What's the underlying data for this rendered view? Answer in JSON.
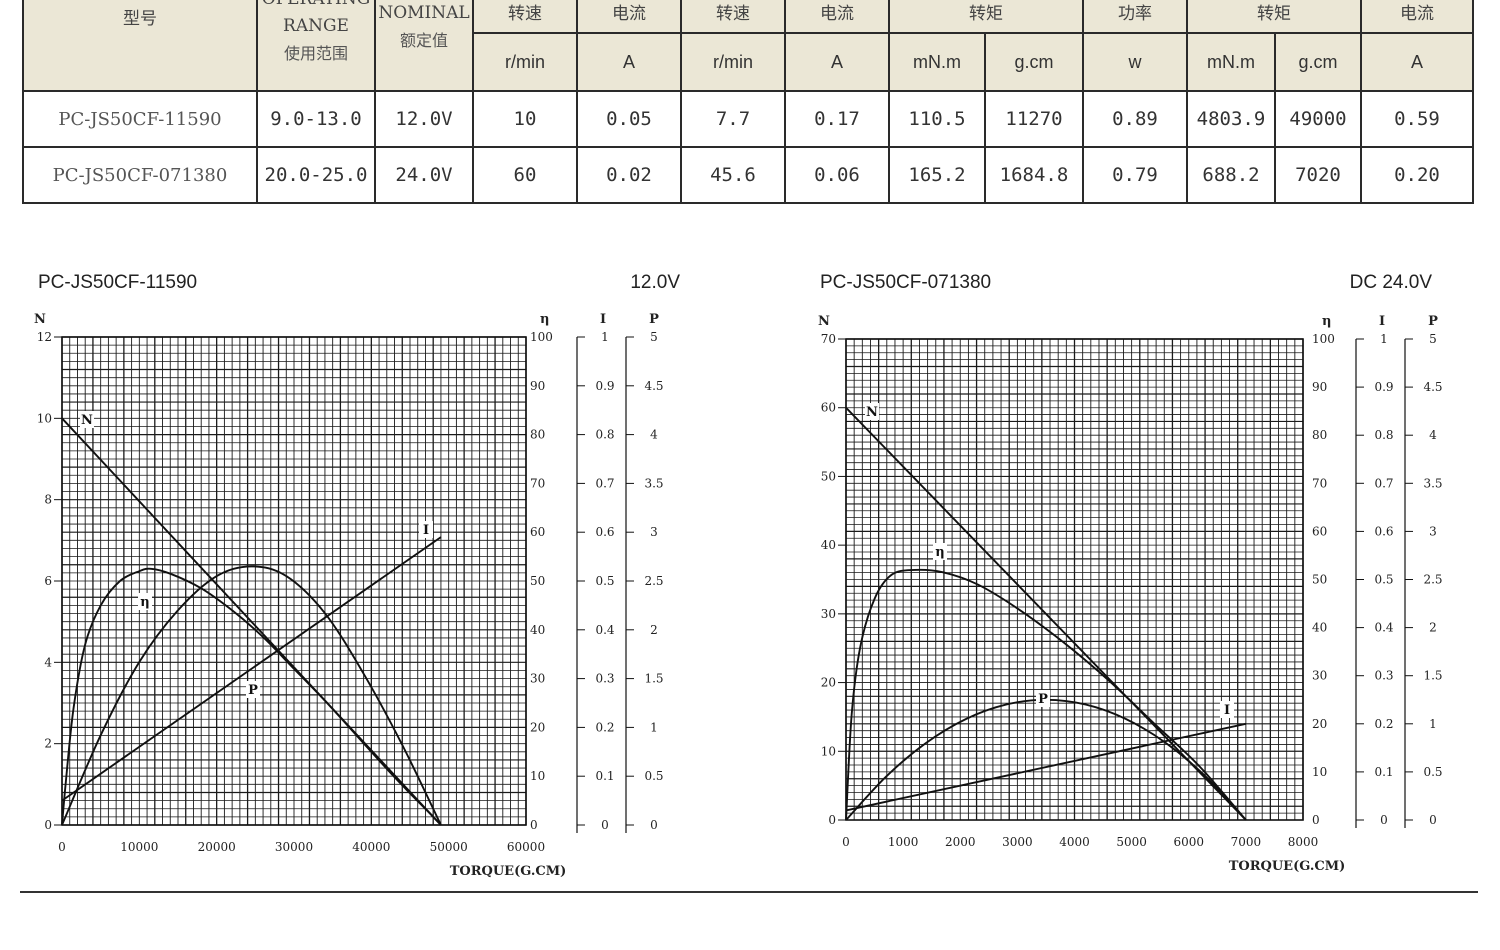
{
  "table": {
    "model_header": "型号",
    "op_range_en_1": "OPERATING",
    "op_range_en_2": "RANGE",
    "op_range_cn": "使用范围",
    "nominal_en": "NOMINAL",
    "nominal_cn": "额定值",
    "group_headers": [
      "转速",
      "电流",
      "转速",
      "电流",
      "转矩",
      "功率",
      "转矩",
      "电流"
    ],
    "units": [
      "r/min",
      "A",
      "r/min",
      "A",
      "mN.m",
      "g.cm",
      "w",
      "mN.m",
      "g.cm",
      "A"
    ],
    "rows": [
      [
        "PC-JS50CF-11590",
        "9.0-13.0",
        "12.0V",
        "10",
        "0.05",
        "7.7",
        "0.17",
        "110.5",
        "11270",
        "0.89",
        "4803.9",
        "49000",
        "0.59"
      ],
      [
        "PC-JS50CF-071380",
        "20.0-25.0",
        "24.0V",
        "60",
        "0.02",
        "45.6",
        "0.06",
        "165.2",
        "1684.8",
        "0.79",
        "688.2",
        "7020",
        "0.20"
      ]
    ]
  },
  "chart_data": [
    {
      "type": "line",
      "title": "PC-JS50CF-11590",
      "voltage_label": "12.0V",
      "xlabel": "TORQUE(G.CM)",
      "xlim": [
        0,
        60000
      ],
      "x_ticks": [
        "0",
        "10000",
        "20000",
        "30000",
        "40000",
        "50000",
        "60000"
      ],
      "axes": {
        "N": {
          "label": "N",
          "range": [
            0,
            12
          ],
          "ticks": [
            "0",
            "2",
            "4",
            "6",
            "8",
            "10",
            "12"
          ]
        },
        "eta": {
          "label": "η",
          "range": [
            0,
            100
          ],
          "ticks": [
            "0",
            "10",
            "20",
            "30",
            "40",
            "50",
            "60",
            "70",
            "80",
            "90",
            "100"
          ]
        },
        "I": {
          "label": "I",
          "range": [
            0,
            1
          ],
          "ticks": [
            "0",
            "0.1",
            "0.2",
            "0.3",
            "0.4",
            "0.5",
            "0.6",
            "0.7",
            "0.8",
            "0.9",
            "1"
          ]
        },
        "P": {
          "label": "P",
          "range": [
            0,
            5
          ],
          "ticks": [
            "0",
            "0.5",
            "1",
            "1.5",
            "2",
            "2.5",
            "3",
            "3.5",
            "4",
            "4.5",
            "5"
          ]
        }
      },
      "series": [
        {
          "name": "N",
          "axis": "N",
          "x": [
            0,
            49000
          ],
          "y": [
            10.0,
            0
          ]
        },
        {
          "name": "I",
          "axis": "I",
          "x": [
            0,
            49000
          ],
          "y": [
            0.05,
            0.59
          ]
        },
        {
          "name": "η",
          "axis": "eta",
          "x": [
            0,
            500,
            1500,
            3000,
            5000,
            7500,
            10000,
            11500,
            14000,
            18000,
            22000,
            26000,
            30000,
            34000,
            38000,
            42000,
            45000,
            47500,
            49000
          ],
          "y": [
            0,
            9,
            24,
            37,
            45,
            50,
            52,
            52.5,
            51.5,
            48.5,
            44,
            38.5,
            32,
            25.5,
            18.5,
            11.5,
            6.5,
            2.5,
            0
          ]
        },
        {
          "name": "P",
          "axis": "P",
          "x": [
            0,
            5000,
            10000,
            15000,
            20000,
            24500,
            29000,
            34000,
            39000,
            44000,
            49000
          ],
          "y": [
            0,
            0.92,
            1.67,
            2.2,
            2.55,
            2.65,
            2.55,
            2.17,
            1.55,
            0.82,
            0
          ]
        }
      ],
      "curve_labels": [
        "N",
        "I",
        "η",
        "P"
      ]
    },
    {
      "type": "line",
      "title": "PC-JS50CF-071380",
      "voltage_label": "DC 24.0V",
      "xlabel": "TORQUE(G.CM)",
      "xlim": [
        0,
        8000
      ],
      "x_ticks": [
        "0",
        "1000",
        "2000",
        "3000",
        "4000",
        "5000",
        "6000",
        "7000",
        "8000"
      ],
      "axes": {
        "N": {
          "label": "N",
          "range": [
            0,
            70
          ],
          "ticks": [
            "0",
            "10",
            "20",
            "30",
            "40",
            "50",
            "60",
            "70"
          ]
        },
        "eta": {
          "label": "η",
          "range": [
            0,
            100
          ],
          "ticks": [
            "0",
            "10",
            "20",
            "30",
            "40",
            "50",
            "60",
            "70",
            "80",
            "90",
            "100"
          ]
        },
        "I": {
          "label": "I",
          "range": [
            0,
            1
          ],
          "ticks": [
            "0",
            "0.1",
            "0.2",
            "0.3",
            "0.4",
            "0.5",
            "0.6",
            "0.7",
            "0.8",
            "0.9",
            "1"
          ]
        },
        "P": {
          "label": "P",
          "range": [
            0,
            5
          ],
          "ticks": [
            "0",
            "0.5",
            "1",
            "1.5",
            "2",
            "2.5",
            "3",
            "3.5",
            "4",
            "4.5",
            "5"
          ]
        }
      },
      "series": [
        {
          "name": "N",
          "axis": "N",
          "x": [
            0,
            7000
          ],
          "y": [
            60,
            0
          ]
        },
        {
          "name": "I",
          "axis": "I",
          "x": [
            0,
            7000
          ],
          "y": [
            0.02,
            0.2
          ]
        },
        {
          "name": "η",
          "axis": "eta",
          "x": [
            0,
            100,
            250,
            500,
            800,
            1200,
            1700,
            2300,
            3000,
            3800,
            4600,
            5400,
            6200,
            7000
          ],
          "y": [
            0,
            22,
            36,
            46,
            51,
            52,
            51.5,
            49,
            44,
            37,
            29,
            20,
            11,
            0
          ]
        },
        {
          "name": "P",
          "axis": "P",
          "x": [
            0,
            700,
            1400,
            2100,
            2800,
            3500,
            4200,
            4900,
            5600,
            6300,
            7000
          ],
          "y": [
            0,
            0.45,
            0.8,
            1.05,
            1.2,
            1.25,
            1.2,
            1.05,
            0.8,
            0.45,
            0
          ]
        }
      ],
      "curve_labels": [
        "N",
        "I",
        "η",
        "P"
      ]
    }
  ]
}
